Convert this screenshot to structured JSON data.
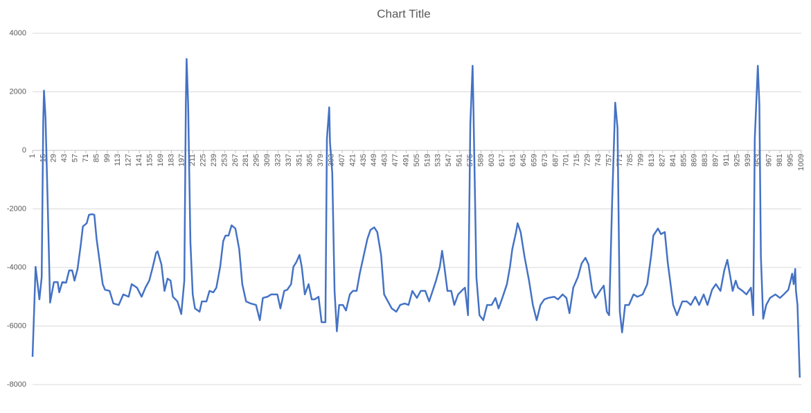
{
  "chart_data": {
    "type": "line",
    "title": "Chart Title",
    "color": "#4472c4",
    "grid": true,
    "xlim": [
      1,
      1009
    ],
    "xticks": [
      1,
      15,
      29,
      43,
      57,
      71,
      85,
      99,
      113,
      127,
      141,
      155,
      169,
      183,
      197,
      211,
      225,
      239,
      253,
      267,
      281,
      295,
      309,
      323,
      337,
      351,
      365,
      379,
      393,
      407,
      421,
      435,
      449,
      463,
      477,
      491,
      505,
      519,
      533,
      547,
      561,
      575,
      589,
      603,
      617,
      631,
      645,
      659,
      673,
      687,
      701,
      715,
      729,
      743,
      757,
      771,
      785,
      799,
      813,
      827,
      841,
      855,
      869,
      883,
      897,
      911,
      925,
      939,
      953,
      967,
      981,
      995,
      1009
    ],
    "ylim": [
      -8000,
      4000
    ],
    "yticks": [
      4000,
      2000,
      0,
      -2000,
      -4000,
      -6000,
      -8000
    ],
    "x": [
      1,
      5,
      10,
      13,
      15,
      16,
      18,
      21,
      24,
      26,
      29,
      34,
      36,
      40,
      45,
      49,
      53,
      56,
      60,
      64,
      67,
      72,
      75,
      79,
      82,
      85,
      89,
      93,
      96,
      102,
      107,
      114,
      120,
      127,
      131,
      138,
      144,
      149,
      154,
      158,
      163,
      165,
      170,
      174,
      178,
      182,
      185,
      191,
      196,
      200,
      202,
      203,
      205,
      208,
      211,
      214,
      220,
      223,
      229,
      233,
      238,
      242,
      247,
      251,
      254,
      258,
      262,
      267,
      272,
      276,
      281,
      287,
      294,
      299,
      303,
      309,
      314,
      322,
      326,
      331,
      335,
      340,
      343,
      347,
      351,
      354,
      358,
      363,
      367,
      371,
      376,
      380,
      385,
      387,
      390,
      391,
      394,
      397,
      400,
      403,
      408,
      412,
      417,
      421,
      426,
      430,
      435,
      440,
      444,
      449,
      453,
      458,
      462,
      467,
      472,
      478,
      483,
      489,
      494,
      499,
      505,
      510,
      516,
      521,
      527,
      530,
      535,
      538,
      541,
      545,
      550,
      554,
      559,
      565,
      568,
      572,
      575,
      578,
      579,
      583,
      587,
      592,
      597,
      603,
      608,
      612,
      617,
      623,
      627,
      630,
      635,
      637,
      641,
      646,
      652,
      657,
      662,
      667,
      672,
      677,
      685,
      690,
      696,
      701,
      705,
      710,
      716,
      721,
      726,
      730,
      735,
      739,
      745,
      750,
      754,
      757,
      761,
      765,
      768,
      771,
      774,
      778,
      783,
      789,
      794,
      801,
      807,
      812,
      815,
      821,
      825,
      830,
      834,
      837,
      841,
      846,
      853,
      859,
      864,
      870,
      875,
      881,
      886,
      892,
      897,
      903,
      908,
      912,
      916,
      919,
      923,
      926,
      932,
      937,
      943,
      946,
      948,
      952,
      954,
      956,
      959,
      963,
      968,
      975,
      981,
      986,
      992,
      995,
      997,
      999,
      1001,
      1002,
      1004,
      1007
    ],
    "values": [
      -7050,
      -3980,
      -5090,
      -4330,
      1000,
      2040,
      1110,
      -1960,
      -5200,
      -4920,
      -4500,
      -4500,
      -4850,
      -4500,
      -4520,
      -4100,
      -4100,
      -4450,
      -4050,
      -3270,
      -2600,
      -2490,
      -2200,
      -2180,
      -2200,
      -3030,
      -3800,
      -4570,
      -4760,
      -4800,
      -5230,
      -5280,
      -4920,
      -5000,
      -4570,
      -4690,
      -5000,
      -4690,
      -4450,
      -4050,
      -3500,
      -3450,
      -3900,
      -4800,
      -4380,
      -4450,
      -5000,
      -5160,
      -5590,
      -4450,
      1590,
      3120,
      1590,
      -3150,
      -4920,
      -5400,
      -5510,
      -5160,
      -5160,
      -4800,
      -4850,
      -4690,
      -3980,
      -3100,
      -2910,
      -2910,
      -2560,
      -2670,
      -3380,
      -4570,
      -5160,
      -5230,
      -5280,
      -5800,
      -5040,
      -5000,
      -4920,
      -4920,
      -5400,
      -4800,
      -4760,
      -4570,
      -3980,
      -3810,
      -3570,
      -3980,
      -4920,
      -4570,
      -5090,
      -5090,
      -5000,
      -5870,
      -5870,
      400,
      1470,
      280,
      -780,
      -4800,
      -6180,
      -5280,
      -5280,
      -5470,
      -4920,
      -4800,
      -4800,
      -4210,
      -3620,
      -3030,
      -2720,
      -2630,
      -2790,
      -3570,
      -4920,
      -5160,
      -5400,
      -5510,
      -5280,
      -5230,
      -5280,
      -4800,
      -5040,
      -4800,
      -4800,
      -5160,
      -4690,
      -4450,
      -3980,
      -3430,
      -3980,
      -4800,
      -4800,
      -5280,
      -4920,
      -4760,
      -4690,
      -5630,
      880,
      2890,
      1590,
      -4330,
      -5630,
      -5800,
      -5280,
      -5280,
      -5040,
      -5400,
      -5040,
      -4570,
      -3980,
      -3380,
      -2790,
      -2490,
      -2790,
      -3620,
      -4450,
      -5280,
      -5800,
      -5280,
      -5090,
      -5040,
      -5000,
      -5090,
      -4920,
      -5040,
      -5560,
      -4690,
      -4330,
      -3860,
      -3670,
      -3900,
      -4800,
      -5040,
      -4800,
      -4620,
      -5510,
      -5630,
      -1730,
      1630,
      760,
      -5510,
      -6220,
      -5280,
      -5280,
      -4920,
      -5000,
      -4920,
      -4570,
      -3620,
      -2910,
      -2670,
      -2860,
      -2790,
      -3860,
      -4450,
      -5280,
      -5630,
      -5160,
      -5160,
      -5280,
      -5000,
      -5280,
      -4920,
      -5280,
      -4760,
      -4570,
      -4800,
      -4100,
      -3740,
      -4330,
      -4800,
      -4450,
      -4690,
      -4800,
      -4920,
      -4690,
      -5630,
      400,
      2890,
      1590,
      -3620,
      -5750,
      -5280,
      -5040,
      -4920,
      -5040,
      -4920,
      -4760,
      -4450,
      -4210,
      -4570,
      -4050,
      -4800,
      -5280,
      -7760
    ]
  }
}
